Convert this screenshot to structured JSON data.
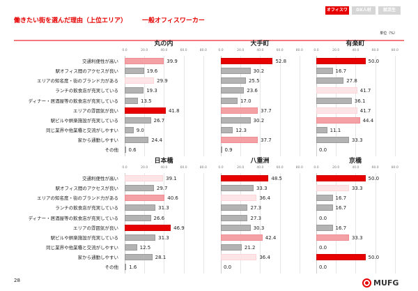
{
  "header": {
    "title": "働きたい街を選んだ理由（上位エリア）",
    "subtitle": "一般オフィスワーカー",
    "unit": "単位（%）",
    "tabs": [
      {
        "label": "オフィスワーカー",
        "active": true
      },
      {
        "label": "DX人材",
        "active": false
      },
      {
        "label": "就活生",
        "active": false
      }
    ]
  },
  "footer": {
    "page": "28",
    "logo": "MUFG"
  },
  "colors": {
    "rank1": "#e60000",
    "rank2": "#f4a1a5",
    "rank3": "#fde4e6",
    "other": "#b3b3b3"
  },
  "chart_data": {
    "type": "bar",
    "orientation": "horizontal",
    "xlim": [
      0,
      80
    ],
    "ticks": [
      "0.0",
      "20.0",
      "40.0",
      "60.0",
      "80.0"
    ],
    "categories": [
      "交通利便性が高い",
      "駅オフィス間のアクセスが良い",
      "エリアの知名度・街のブランド力がある",
      "ランチの飲食店が充実している",
      "ディナー・居酒屋等の飲食店が充実している",
      "エリアの雰囲気が良い",
      "駅ビルや娯楽施設が充実している",
      "同じ業界や他業種と交流がしやすい",
      "家から通勤しやすい",
      "その他"
    ],
    "panels": [
      {
        "title": "丸の内",
        "values": [
          39.9,
          19.6,
          29.9,
          19.3,
          13.5,
          41.8,
          26.7,
          9.0,
          24.4,
          0.6
        ],
        "highlight": [
          2,
          0,
          3,
          0,
          0,
          1,
          0,
          0,
          0,
          0
        ]
      },
      {
        "title": "大手町",
        "values": [
          52.8,
          30.2,
          25.5,
          23.6,
          17.0,
          37.7,
          30.2,
          12.3,
          37.7,
          0.9
        ],
        "highlight": [
          1,
          0,
          0,
          0,
          0,
          2,
          0,
          0,
          2,
          0
        ]
      },
      {
        "title": "有楽町",
        "values": [
          50.0,
          16.7,
          27.8,
          41.7,
          36.1,
          41.7,
          44.4,
          11.1,
          33.3,
          0.0
        ],
        "highlight": [
          1,
          0,
          0,
          3,
          0,
          3,
          2,
          0,
          0,
          0
        ]
      },
      {
        "title": "日本橋",
        "values": [
          39.1,
          29.7,
          40.6,
          31.3,
          26.6,
          46.9,
          31.3,
          12.5,
          28.1,
          1.6
        ],
        "highlight": [
          3,
          0,
          2,
          0,
          0,
          1,
          0,
          0,
          0,
          0
        ]
      },
      {
        "title": "八重洲",
        "values": [
          48.5,
          33.3,
          36.4,
          27.3,
          27.3,
          30.3,
          42.4,
          21.2,
          36.4,
          0.0
        ],
        "highlight": [
          1,
          0,
          3,
          0,
          0,
          0,
          2,
          0,
          3,
          0
        ]
      },
      {
        "title": "京橋",
        "values": [
          50.0,
          33.3,
          16.7,
          16.7,
          0.0,
          16.7,
          33.3,
          0.0,
          50.0,
          0.0
        ],
        "highlight": [
          1,
          3,
          0,
          0,
          0,
          0,
          2,
          0,
          1,
          0
        ]
      }
    ]
  }
}
